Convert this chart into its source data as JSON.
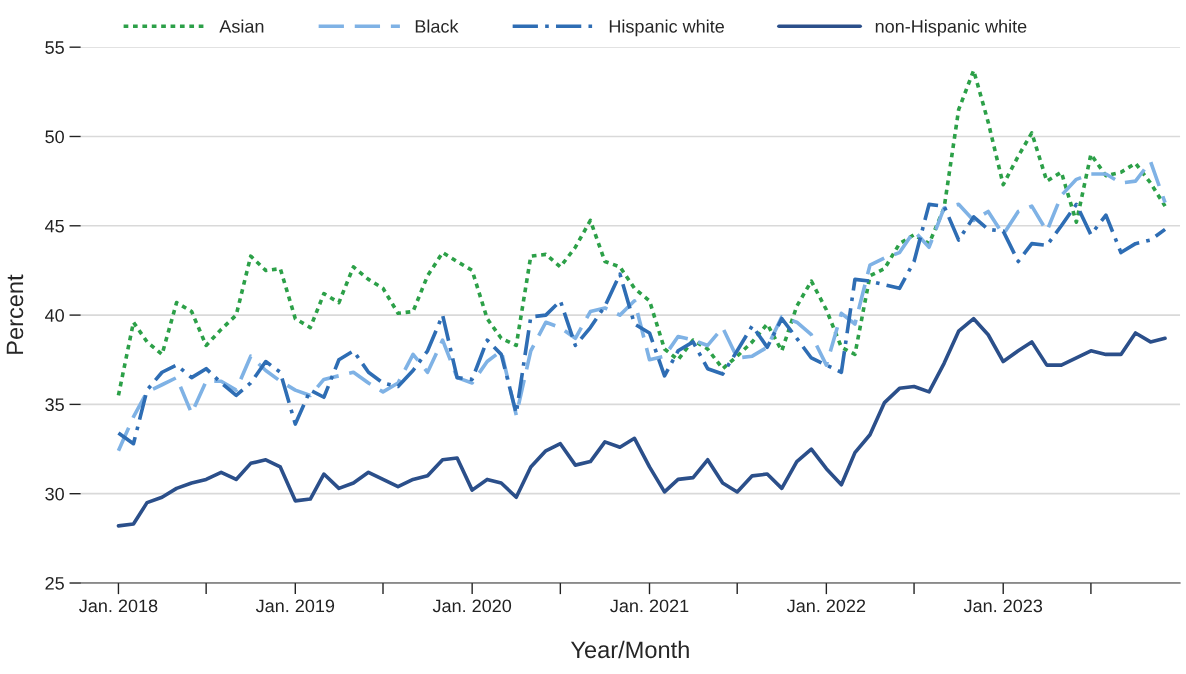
{
  "chart_data": {
    "type": "line",
    "xlabel": "Year/Month",
    "ylabel": "Percent",
    "x": [
      "2018-01",
      "2018-02",
      "2018-03",
      "2018-04",
      "2018-05",
      "2018-06",
      "2018-07",
      "2018-08",
      "2018-09",
      "2018-10",
      "2018-11",
      "2018-12",
      "2019-01",
      "2019-02",
      "2019-03",
      "2019-04",
      "2019-05",
      "2019-06",
      "2019-07",
      "2019-08",
      "2019-09",
      "2019-10",
      "2019-11",
      "2019-12",
      "2020-01",
      "2020-02",
      "2020-03",
      "2020-04",
      "2020-05",
      "2020-06",
      "2020-07",
      "2020-08",
      "2020-09",
      "2020-10",
      "2020-11",
      "2020-12",
      "2021-01",
      "2021-02",
      "2021-03",
      "2021-04",
      "2021-05",
      "2021-06",
      "2021-07",
      "2021-08",
      "2021-09",
      "2021-10",
      "2021-11",
      "2021-12",
      "2022-01",
      "2022-02",
      "2022-03",
      "2022-04",
      "2022-05",
      "2022-06",
      "2022-07",
      "2022-08",
      "2022-09",
      "2022-10",
      "2022-11",
      "2022-12",
      "2023-01",
      "2023-02",
      "2023-03",
      "2023-04",
      "2023-05",
      "2023-06",
      "2023-07",
      "2023-08",
      "2023-09",
      "2023-10",
      "2023-11",
      "2023-12"
    ],
    "ylim": [
      25,
      55
    ],
    "yticks": [
      25,
      30,
      35,
      40,
      45,
      50,
      55
    ],
    "xlim": [
      "2017-10-15",
      "2024-01-01"
    ],
    "xticks": [
      {
        "value": "2018-01",
        "label": "Jan. 2018"
      },
      {
        "value": "2018-07",
        "label": null
      },
      {
        "value": "2019-01",
        "label": "Jan. 2019"
      },
      {
        "value": "2019-07",
        "label": null
      },
      {
        "value": "2020-01",
        "label": "Jan. 2020"
      },
      {
        "value": "2020-07",
        "label": null
      },
      {
        "value": "2021-01",
        "label": "Jan. 2021"
      },
      {
        "value": "2021-07",
        "label": null
      },
      {
        "value": "2022-01",
        "label": "Jan. 2022"
      },
      {
        "value": "2022-07",
        "label": null
      },
      {
        "value": "2023-01",
        "label": "Jan. 2023"
      },
      {
        "value": "2023-07",
        "label": null
      }
    ],
    "grid": "y",
    "legend": "top",
    "marker": "none",
    "series": [
      {
        "name": "Asian",
        "color": "#2ca048",
        "line_style": "dotted",
        "values": [
          35.5,
          39.6,
          38.5,
          37.8,
          40.7,
          40.2,
          38.3,
          39.2,
          40.0,
          43.3,
          42.5,
          42.6,
          39.8,
          39.3,
          41.2,
          40.7,
          42.7,
          42.0,
          41.5,
          40.1,
          40.2,
          42.2,
          43.5,
          43.0,
          42.5,
          39.8,
          38.7,
          38.3,
          43.3,
          43.4,
          42.7,
          43.8,
          45.3,
          43.0,
          42.7,
          41.5,
          40.8,
          38.1,
          37.5,
          38.6,
          38.1,
          37.0,
          37.7,
          38.5,
          39.5,
          38.0,
          40.5,
          41.9,
          40.3,
          38.2,
          37.8,
          42.2,
          42.6,
          44.0,
          44.5,
          44.0,
          46.0,
          51.5,
          53.7,
          50.8,
          47.3,
          48.9,
          50.2,
          47.5,
          48.0,
          45.2,
          49.0,
          47.8,
          48.0,
          48.5,
          47.4,
          46.1
        ]
      },
      {
        "name": "Black",
        "color": "#7fb2e5",
        "line_style": "dashed",
        "values": [
          32.4,
          34.3,
          35.7,
          36.1,
          36.5,
          34.5,
          36.3,
          36.3,
          35.8,
          37.7,
          36.9,
          36.3,
          35.8,
          35.5,
          36.4,
          36.6,
          36.8,
          36.2,
          35.7,
          36.2,
          37.8,
          36.8,
          38.6,
          36.5,
          36.2,
          37.4,
          38.0,
          34.4,
          38.0,
          39.6,
          39.3,
          38.7,
          40.2,
          40.4,
          40.0,
          40.8,
          37.5,
          37.7,
          38.8,
          38.6,
          38.3,
          39.3,
          37.6,
          37.7,
          38.2,
          39.9,
          39.6,
          38.9,
          37.2,
          40.1,
          39.5,
          42.8,
          43.2,
          43.5,
          44.7,
          43.8,
          46.0,
          46.2,
          45.3,
          45.8,
          44.5,
          45.8,
          46.1,
          44.7,
          46.7,
          47.6,
          47.9,
          47.9,
          47.4,
          47.5,
          48.6,
          46.3
        ]
      },
      {
        "name": "Hispanic white",
        "color": "#2e6db4",
        "line_style": "dashdot",
        "values": [
          33.4,
          32.8,
          35.8,
          36.8,
          37.2,
          36.5,
          37.0,
          36.2,
          35.5,
          36.2,
          37.4,
          36.8,
          33.9,
          35.8,
          35.4,
          37.5,
          38.0,
          36.8,
          36.2,
          36.0,
          36.9,
          38.0,
          40.0,
          36.5,
          36.4,
          38.6,
          37.8,
          34.5,
          39.9,
          40.0,
          40.8,
          38.3,
          39.3,
          40.5,
          42.3,
          39.5,
          39.0,
          36.6,
          38.0,
          38.5,
          37.0,
          36.7,
          38.0,
          39.4,
          38.2,
          39.8,
          38.7,
          37.6,
          37.2,
          36.8,
          42.0,
          41.9,
          41.7,
          41.5,
          43.0,
          46.2,
          46.1,
          44.2,
          45.5,
          44.8,
          44.7,
          43.0,
          44.0,
          43.9,
          45.0,
          46.2,
          44.5,
          45.6,
          43.5,
          44.0,
          44.2,
          44.8
        ]
      },
      {
        "name": "non-Hispanic white",
        "color": "#2b4f8a",
        "line_style": "solid",
        "values": [
          28.2,
          28.3,
          29.5,
          29.8,
          30.3,
          30.6,
          30.8,
          31.2,
          30.8,
          31.7,
          31.9,
          31.5,
          29.6,
          29.7,
          31.1,
          30.3,
          30.6,
          31.2,
          30.8,
          30.4,
          30.8,
          31.0,
          31.9,
          32.0,
          30.2,
          30.8,
          30.6,
          29.8,
          31.5,
          32.4,
          32.8,
          31.6,
          31.8,
          32.9,
          32.6,
          33.1,
          31.5,
          30.1,
          30.8,
          30.9,
          31.9,
          30.6,
          30.1,
          31.0,
          31.1,
          30.3,
          31.8,
          32.5,
          31.4,
          30.5,
          32.3,
          33.3,
          35.1,
          35.9,
          36.0,
          35.7,
          37.3,
          39.1,
          39.8,
          38.9,
          37.4,
          38.0,
          38.5,
          37.2,
          37.2,
          37.6,
          38.0,
          37.8,
          37.8,
          39.0,
          38.5,
          38.7
        ]
      }
    ]
  }
}
